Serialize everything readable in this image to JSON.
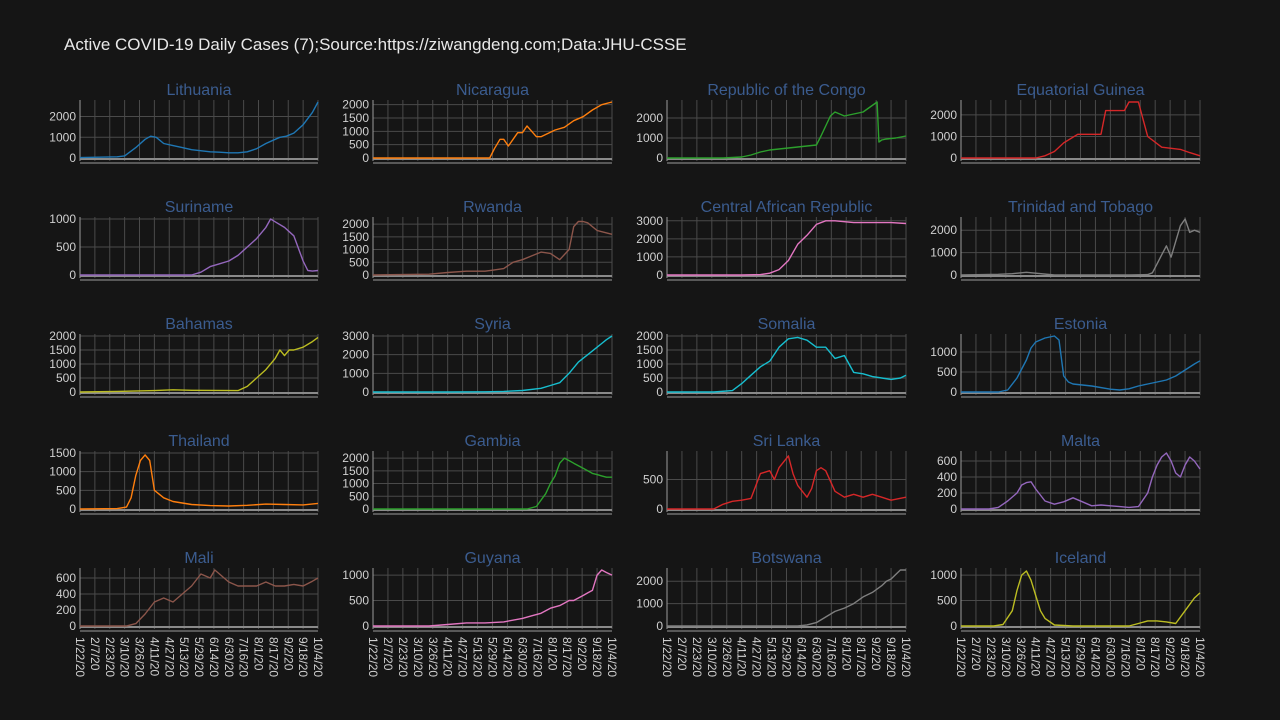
{
  "title": "Active COVID-19 Daily Cases (7);Source:https://ziwangdeng.com;Data:JHU-CSSE",
  "x_tick_labels": [
    "1/22/20",
    "2/7/20",
    "2/23/20",
    "3/10/20",
    "3/26/20",
    "4/11/20",
    "4/27/20",
    "5/13/20",
    "5/29/20",
    "6/14/20",
    "6/30/20",
    "7/16/20",
    "8/1/20",
    "8/17/20",
    "9/2/20",
    "9/18/20",
    "10/4/20"
  ],
  "chart_data": [
    {
      "type": "line",
      "title": "Lithuania",
      "color": "#1f77b4",
      "ylim": [
        0,
        2700
      ],
      "yticks": [
        0,
        1000,
        2000
      ],
      "x": [
        0,
        20,
        40,
        48,
        60,
        70,
        76,
        82,
        90,
        100,
        110,
        120,
        140,
        150,
        160,
        170,
        180,
        190,
        200,
        210,
        215,
        222,
        230,
        240,
        250,
        256
      ],
      "values": [
        20,
        40,
        60,
        100,
        500,
        900,
        1050,
        1000,
        700,
        600,
        500,
        400,
        300,
        280,
        250,
        250,
        300,
        450,
        700,
        900,
        1000,
        1050,
        1200,
        1600,
        2200,
        2700
      ]
    },
    {
      "type": "line",
      "title": "Nicaragua",
      "color": "#ff7f0e",
      "ylim": [
        0,
        2100
      ],
      "yticks": [
        0,
        500,
        1000,
        1500,
        2000
      ],
      "x": [
        0,
        50,
        80,
        110,
        125,
        130,
        136,
        140,
        145,
        155,
        160,
        165,
        175,
        180,
        195,
        205,
        215,
        225,
        235,
        245,
        256
      ],
      "values": [
        0,
        0,
        0,
        0,
        0,
        350,
        700,
        700,
        450,
        950,
        950,
        1200,
        800,
        800,
        1050,
        1150,
        1400,
        1550,
        1800,
        2000,
        2100
      ]
    },
    {
      "type": "line",
      "title": "Republic of the Congo",
      "color": "#2ca02c",
      "ylim": [
        0,
        2800
      ],
      "yticks": [
        0,
        1000,
        2000
      ],
      "x": [
        0,
        60,
        80,
        90,
        100,
        110,
        120,
        140,
        160,
        165,
        170,
        175,
        180,
        190,
        200,
        210,
        225,
        227,
        230,
        235,
        245,
        256
      ],
      "values": [
        0,
        0,
        50,
        150,
        300,
        400,
        450,
        550,
        650,
        1100,
        1600,
        2100,
        2300,
        2100,
        2200,
        2300,
        2800,
        800,
        900,
        950,
        1000,
        1100
      ]
    },
    {
      "type": "line",
      "title": "Equatorial Guinea",
      "color": "#d62728",
      "ylim": [
        0,
        2600
      ],
      "yticks": [
        0,
        1000,
        2000
      ],
      "x": [
        0,
        80,
        90,
        100,
        110,
        125,
        140,
        150,
        155,
        165,
        175,
        180,
        185,
        190,
        200,
        215,
        225,
        235,
        245,
        256
      ],
      "values": [
        0,
        0,
        100,
        300,
        700,
        1100,
        1100,
        1100,
        2200,
        2200,
        2200,
        2600,
        2600,
        2600,
        1000,
        500,
        450,
        400,
        250,
        100
      ]
    },
    {
      "type": "line",
      "title": "Suriname",
      "color": "#9467bd",
      "ylim": [
        0,
        1000
      ],
      "yticks": [
        0,
        500,
        1000
      ],
      "x": [
        0,
        120,
        130,
        140,
        150,
        160,
        170,
        180,
        190,
        200,
        205,
        210,
        220,
        230,
        240,
        245,
        250,
        256
      ],
      "values": [
        0,
        0,
        50,
        150,
        200,
        250,
        350,
        500,
        650,
        850,
        1000,
        950,
        850,
        700,
        250,
        80,
        70,
        80
      ]
    },
    {
      "type": "line",
      "title": "Rwanda",
      "color": "#8c564b",
      "ylim": [
        0,
        2200
      ],
      "yticks": [
        0,
        500,
        1000,
        1500,
        2000
      ],
      "x": [
        0,
        60,
        80,
        100,
        120,
        130,
        140,
        150,
        160,
        170,
        180,
        190,
        200,
        210,
        215,
        220,
        225,
        230,
        240,
        245,
        256
      ],
      "values": [
        0,
        30,
        100,
        150,
        150,
        200,
        250,
        500,
        600,
        750,
        900,
        850,
        600,
        1000,
        1900,
        2100,
        2100,
        2050,
        1750,
        1700,
        1600
      ]
    },
    {
      "type": "line",
      "title": "Central African Republic",
      "color": "#e377c2",
      "ylim": [
        0,
        3100
      ],
      "yticks": [
        0,
        1000,
        2000,
        3000
      ],
      "x": [
        0,
        80,
        100,
        110,
        120,
        130,
        140,
        150,
        160,
        170,
        180,
        190,
        200,
        210,
        220,
        230,
        240,
        256
      ],
      "values": [
        0,
        0,
        20,
        100,
        300,
        800,
        1700,
        2200,
        2800,
        3000,
        3000,
        2950,
        2900,
        2900,
        2900,
        2900,
        2900,
        2850
      ]
    },
    {
      "type": "line",
      "title": "Trinidad and Tobago",
      "color": "#7f7f7f",
      "ylim": [
        0,
        2500
      ],
      "yticks": [
        0,
        1000,
        2000
      ],
      "x": [
        0,
        40,
        55,
        70,
        80,
        100,
        150,
        180,
        200,
        205,
        210,
        215,
        220,
        225,
        230,
        235,
        240,
        245,
        250,
        256
      ],
      "values": [
        0,
        30,
        60,
        120,
        80,
        0,
        0,
        0,
        20,
        100,
        500,
        900,
        1300,
        800,
        1500,
        2200,
        2500,
        1900,
        2000,
        1900
      ]
    },
    {
      "type": "line",
      "title": "Bahamas",
      "color": "#bcbd22",
      "ylim": [
        0,
        2000
      ],
      "yticks": [
        0,
        500,
        1000,
        1500,
        2000
      ],
      "x": [
        0,
        40,
        80,
        100,
        120,
        170,
        180,
        190,
        200,
        210,
        215,
        220,
        225,
        230,
        240,
        245,
        250,
        256
      ],
      "values": [
        0,
        20,
        50,
        80,
        60,
        50,
        200,
        500,
        800,
        1200,
        1500,
        1300,
        1500,
        1500,
        1600,
        1700,
        1800,
        1950
      ]
    },
    {
      "type": "line",
      "title": "Syria",
      "color": "#17becf",
      "ylim": [
        0,
        3000
      ],
      "yticks": [
        0,
        1000,
        2000,
        3000
      ],
      "x": [
        0,
        80,
        120,
        140,
        160,
        180,
        190,
        200,
        210,
        220,
        230,
        240,
        245,
        250,
        256
      ],
      "values": [
        0,
        0,
        10,
        30,
        80,
        200,
        350,
        500,
        1000,
        1600,
        2000,
        2400,
        2600,
        2800,
        3000
      ]
    },
    {
      "type": "line",
      "title": "Somalia",
      "color": "#17becf",
      "ylim": [
        0,
        2000
      ],
      "yticks": [
        0,
        500,
        1000,
        1500,
        2000
      ],
      "x": [
        0,
        50,
        70,
        80,
        90,
        100,
        110,
        120,
        130,
        140,
        150,
        160,
        170,
        180,
        190,
        200,
        210,
        220,
        230,
        240,
        250,
        256
      ],
      "values": [
        0,
        0,
        50,
        300,
        600,
        900,
        1100,
        1600,
        1900,
        1950,
        1850,
        1600,
        1600,
        1200,
        1300,
        700,
        650,
        550,
        500,
        450,
        500,
        600
      ]
    },
    {
      "type": "line",
      "title": "Estonia",
      "color": "#1f77b4",
      "ylim": [
        0,
        1400
      ],
      "yticks": [
        0,
        500,
        1000
      ],
      "x": [
        0,
        40,
        50,
        60,
        70,
        75,
        80,
        90,
        100,
        105,
        110,
        115,
        120,
        140,
        160,
        170,
        180,
        190,
        200,
        210,
        220,
        230,
        240,
        250,
        256
      ],
      "values": [
        0,
        0,
        50,
        350,
        800,
        1100,
        1250,
        1350,
        1400,
        1300,
        400,
        250,
        200,
        150,
        70,
        50,
        80,
        150,
        200,
        250,
        300,
        400,
        550,
        700,
        780
      ]
    },
    {
      "type": "line",
      "title": "Thailand",
      "color": "#ff7f0e",
      "ylim": [
        0,
        1500
      ],
      "yticks": [
        0,
        500,
        1000,
        1500
      ],
      "x": [
        0,
        40,
        50,
        55,
        60,
        65,
        70,
        75,
        80,
        90,
        100,
        120,
        140,
        160,
        180,
        200,
        220,
        240,
        256
      ],
      "values": [
        0,
        10,
        50,
        300,
        900,
        1300,
        1450,
        1300,
        500,
        300,
        200,
        120,
        90,
        80,
        100,
        130,
        120,
        110,
        150
      ]
    },
    {
      "type": "line",
      "title": "Gambia",
      "color": "#2ca02c",
      "ylim": [
        0,
        2200
      ],
      "yticks": [
        0,
        500,
        1000,
        1500,
        2000
      ],
      "x": [
        0,
        150,
        165,
        175,
        185,
        190,
        195,
        200,
        205,
        210,
        215,
        220,
        225,
        230,
        235,
        240,
        245,
        250,
        256
      ],
      "values": [
        0,
        0,
        0,
        100,
        600,
        1000,
        1300,
        1800,
        2000,
        1900,
        1800,
        1700,
        1600,
        1500,
        1400,
        1350,
        1300,
        1250,
        1250
      ]
    },
    {
      "type": "line",
      "title": "Sri Lanka",
      "color": "#d62728",
      "ylim": [
        0,
        950
      ],
      "yticks": [
        0,
        500
      ],
      "x": [
        0,
        50,
        60,
        70,
        80,
        90,
        100,
        110,
        115,
        120,
        130,
        135,
        140,
        150,
        155,
        160,
        165,
        170,
        180,
        190,
        200,
        210,
        220,
        230,
        240,
        256
      ],
      "values": [
        0,
        0,
        80,
        130,
        150,
        180,
        600,
        650,
        500,
        700,
        900,
        600,
        400,
        200,
        350,
        650,
        700,
        650,
        300,
        200,
        250,
        200,
        250,
        200,
        150,
        200
      ]
    },
    {
      "type": "line",
      "title": "Malta",
      "color": "#9467bd",
      "ylim": [
        0,
        700
      ],
      "yticks": [
        0,
        200,
        400,
        600
      ],
      "x": [
        0,
        30,
        40,
        50,
        60,
        65,
        70,
        75,
        80,
        90,
        100,
        110,
        120,
        130,
        140,
        150,
        160,
        170,
        180,
        190,
        200,
        205,
        210,
        215,
        220,
        225,
        230,
        235,
        240,
        245,
        250,
        256
      ],
      "values": [
        0,
        0,
        20,
        100,
        200,
        300,
        330,
        340,
        250,
        100,
        60,
        90,
        140,
        90,
        40,
        50,
        40,
        30,
        20,
        30,
        200,
        400,
        550,
        650,
        700,
        600,
        450,
        400,
        550,
        650,
        600,
        500
      ]
    },
    {
      "type": "line",
      "title": "Mali",
      "color": "#8c564b",
      "ylim": [
        0,
        700
      ],
      "yticks": [
        0,
        200,
        400,
        600
      ],
      "x": [
        0,
        50,
        60,
        70,
        80,
        90,
        100,
        110,
        120,
        130,
        140,
        145,
        150,
        155,
        160,
        170,
        180,
        190,
        200,
        210,
        220,
        230,
        240,
        250,
        256
      ],
      "values": [
        0,
        0,
        30,
        150,
        300,
        350,
        300,
        400,
        500,
        650,
        600,
        700,
        650,
        600,
        550,
        500,
        500,
        500,
        550,
        500,
        500,
        520,
        500,
        560,
        600
      ]
    },
    {
      "type": "line",
      "title": "Guyana",
      "color": "#e377c2",
      "ylim": [
        0,
        1100
      ],
      "yticks": [
        0,
        500,
        1000
      ],
      "x": [
        0,
        60,
        80,
        100,
        120,
        140,
        160,
        170,
        180,
        190,
        200,
        205,
        210,
        215,
        220,
        225,
        230,
        235,
        240,
        245,
        250,
        256
      ],
      "values": [
        0,
        0,
        30,
        60,
        60,
        80,
        150,
        200,
        250,
        350,
        400,
        450,
        500,
        500,
        550,
        600,
        650,
        700,
        1000,
        1100,
        1050,
        1000
      ]
    },
    {
      "type": "line",
      "title": "Botswana",
      "color": "#7f7f7f",
      "ylim": [
        0,
        2500
      ],
      "yticks": [
        0,
        1000,
        2000
      ],
      "x": [
        0,
        140,
        150,
        160,
        170,
        180,
        190,
        200,
        210,
        220,
        230,
        235,
        240,
        245,
        250,
        256
      ],
      "values": [
        0,
        0,
        50,
        150,
        400,
        650,
        800,
        1000,
        1300,
        1500,
        1800,
        2000,
        2100,
        2300,
        2500,
        2500
      ]
    },
    {
      "type": "line",
      "title": "Iceland",
      "color": "#bcbd22",
      "ylim": [
        0,
        1100
      ],
      "yticks": [
        0,
        500,
        1000
      ],
      "x": [
        0,
        35,
        45,
        55,
        60,
        65,
        70,
        75,
        80,
        85,
        90,
        100,
        120,
        150,
        180,
        190,
        200,
        210,
        220,
        230,
        240,
        250,
        256
      ],
      "values": [
        0,
        0,
        30,
        300,
        700,
        1000,
        1080,
        900,
        600,
        300,
        150,
        20,
        0,
        0,
        0,
        50,
        100,
        100,
        80,
        50,
        300,
        550,
        650
      ]
    }
  ]
}
